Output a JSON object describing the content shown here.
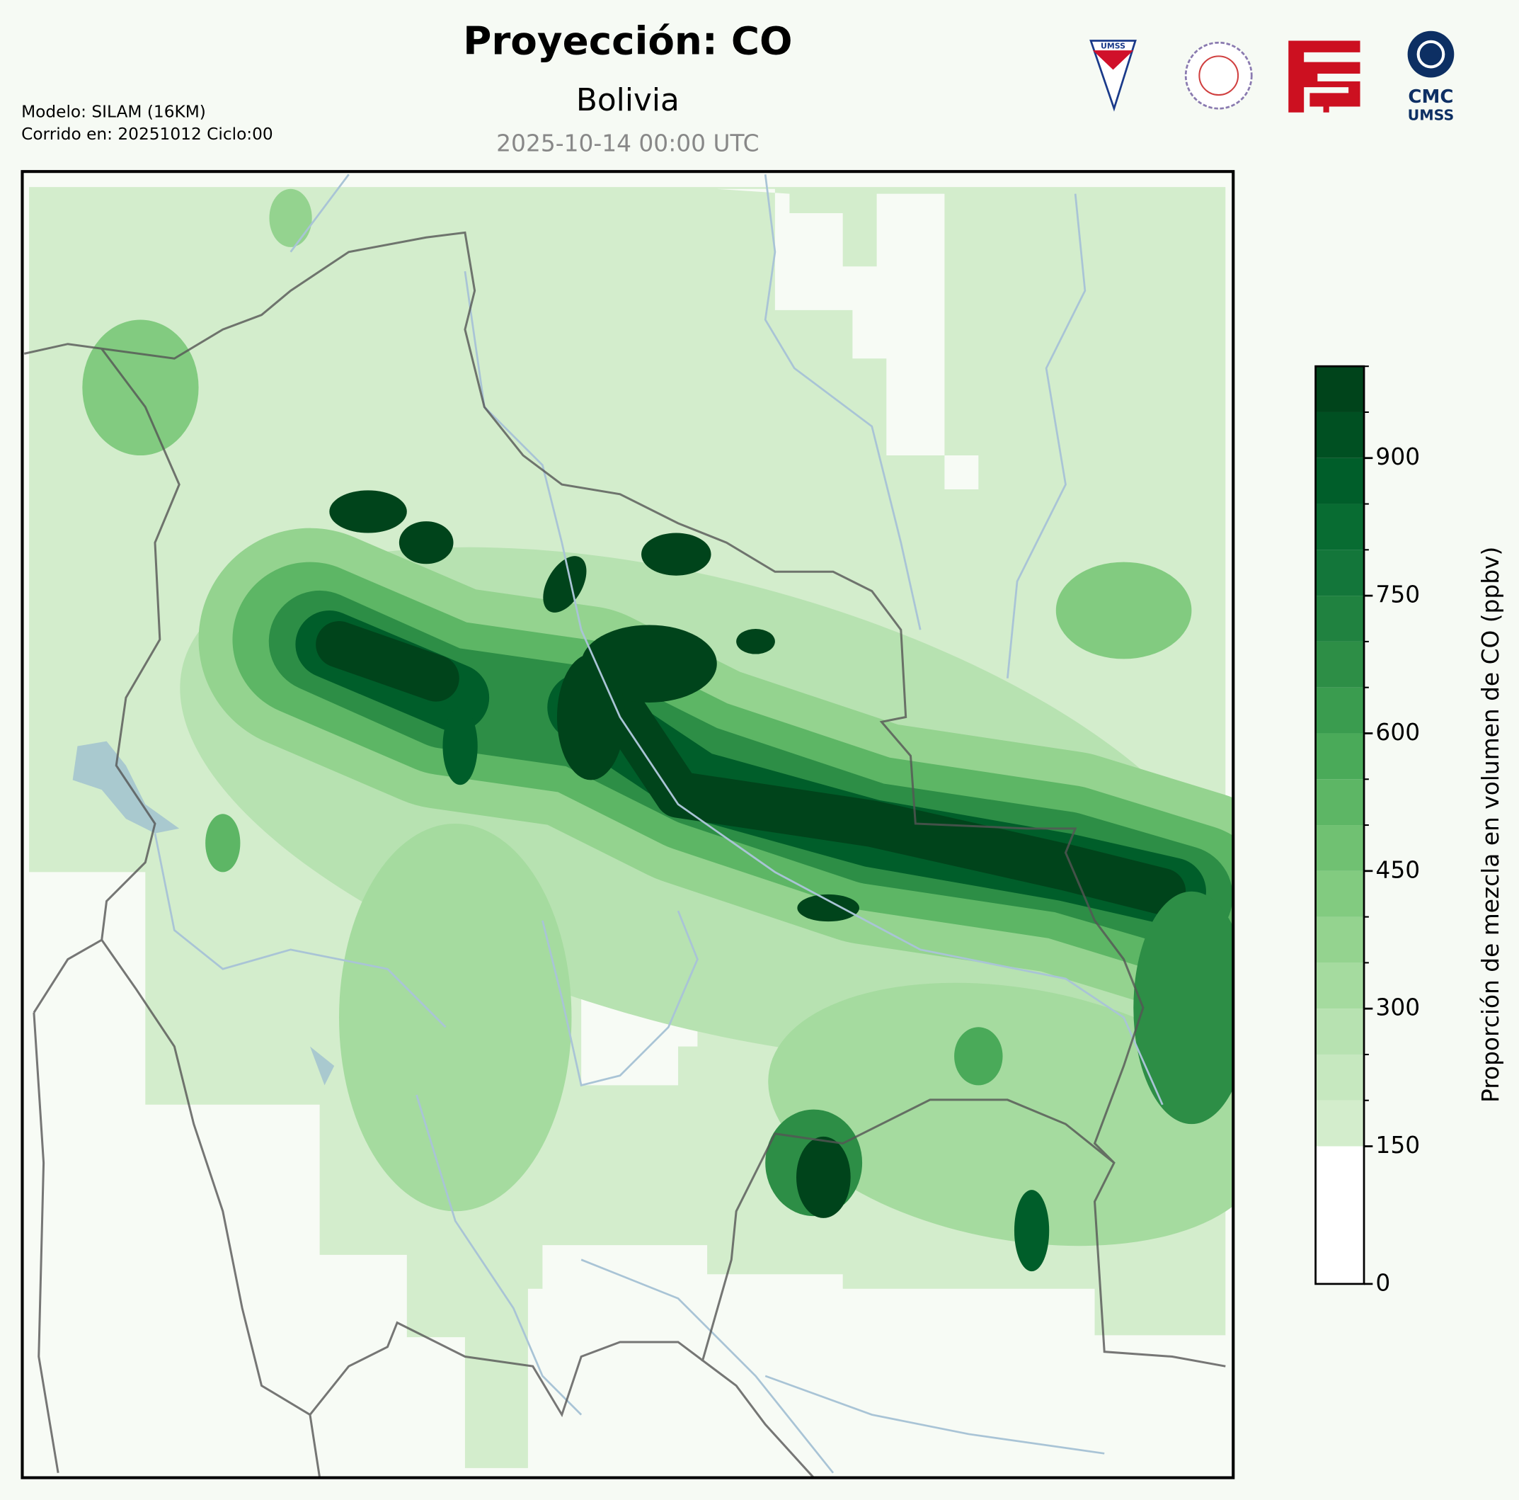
{
  "header": {
    "title": "Proyección: CO",
    "subtitle": "Bolivia",
    "date": "2025-10-14 00:00 UTC",
    "model": "Modelo: SILAM (16KM)",
    "run": "Corrido en: 20251012 Ciclo:00"
  },
  "logos": {
    "umss": "UMSS",
    "cmc": "CMC",
    "cmc_sub": "UMSS"
  },
  "colorbar": {
    "label": "Proporción de mezcla en volumen de CO (ppbv)",
    "lim": [
      0,
      1000
    ],
    "ticks": [
      0,
      150,
      300,
      450,
      600,
      750,
      900
    ],
    "levels": [
      0,
      150,
      200,
      250,
      300,
      350,
      400,
      450,
      500,
      550,
      600,
      650,
      700,
      750,
      800,
      850,
      900,
      950,
      1000
    ],
    "colors": [
      "#ffffff",
      "#d3edcc",
      "#c6e8bf",
      "#b7e2b1",
      "#a5db9f",
      "#94d38f",
      "#82cb80",
      "#70c172",
      "#5db665",
      "#4aaa59",
      "#3a9c4f",
      "#2d8e46",
      "#208240",
      "#13763a",
      "#086c32",
      "#005e2a",
      "#005022",
      "#00441b"
    ]
  }
}
